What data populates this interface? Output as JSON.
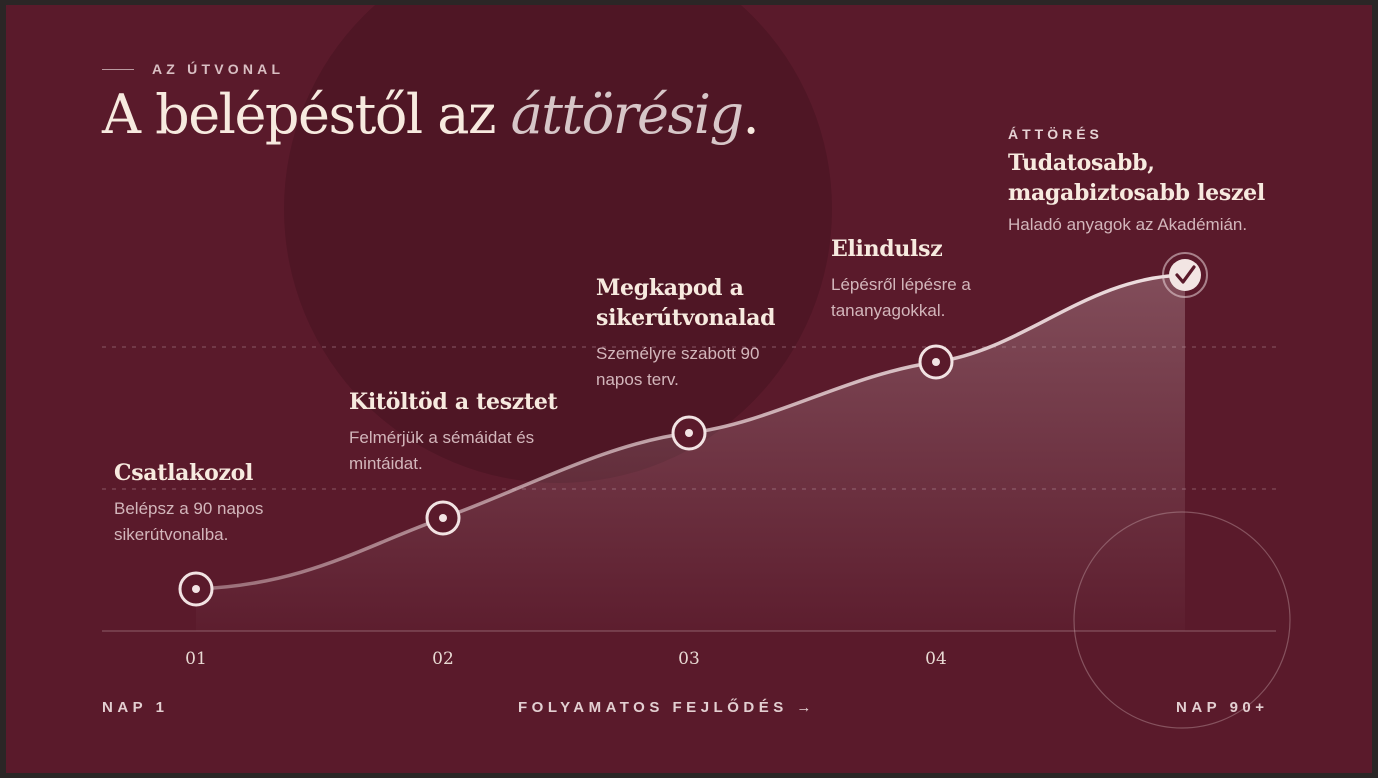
{
  "eyebrow": "AZ ÚTVONAL",
  "headline": {
    "main": "A belépéstől az ",
    "accent": "áttörésig",
    "end": "."
  },
  "steps": [
    {
      "num": "01",
      "title_lines": [
        "Csatlakozol"
      ],
      "desc_lines": [
        "Belépsz a 90 napos",
        "sikerútvonalba."
      ]
    },
    {
      "num": "02",
      "title_lines": [
        "Kitöltöd a tesztet"
      ],
      "desc_lines": [
        "Felmérjük a sémáidat és",
        "mintáidat."
      ]
    },
    {
      "num": "03",
      "title_lines": [
        "Megkapod a",
        "sikerútvonalad"
      ],
      "desc_lines": [
        "Személyre szabott 90",
        "napos terv."
      ]
    },
    {
      "num": "04",
      "title_lines": [
        "Elindulsz"
      ],
      "desc_lines": [
        "Lépésről lépésre a",
        "tananyagokkal."
      ]
    },
    {
      "kicker": "ÁTTÖRÉS",
      "title_lines": [
        "Tudatosabb,",
        "magabiztosabb leszel"
      ],
      "desc_lines": [
        "Haladó anyagok az Akadémián."
      ]
    }
  ],
  "footer": {
    "start": "NAP 1",
    "middle": "FOLYAMATOS FEJLŐDÉS →",
    "end": "NAP 90+"
  },
  "colors": {
    "background": "#5a1a2b",
    "accent_circle": "#4f1625",
    "text": "#f7eadf"
  }
}
